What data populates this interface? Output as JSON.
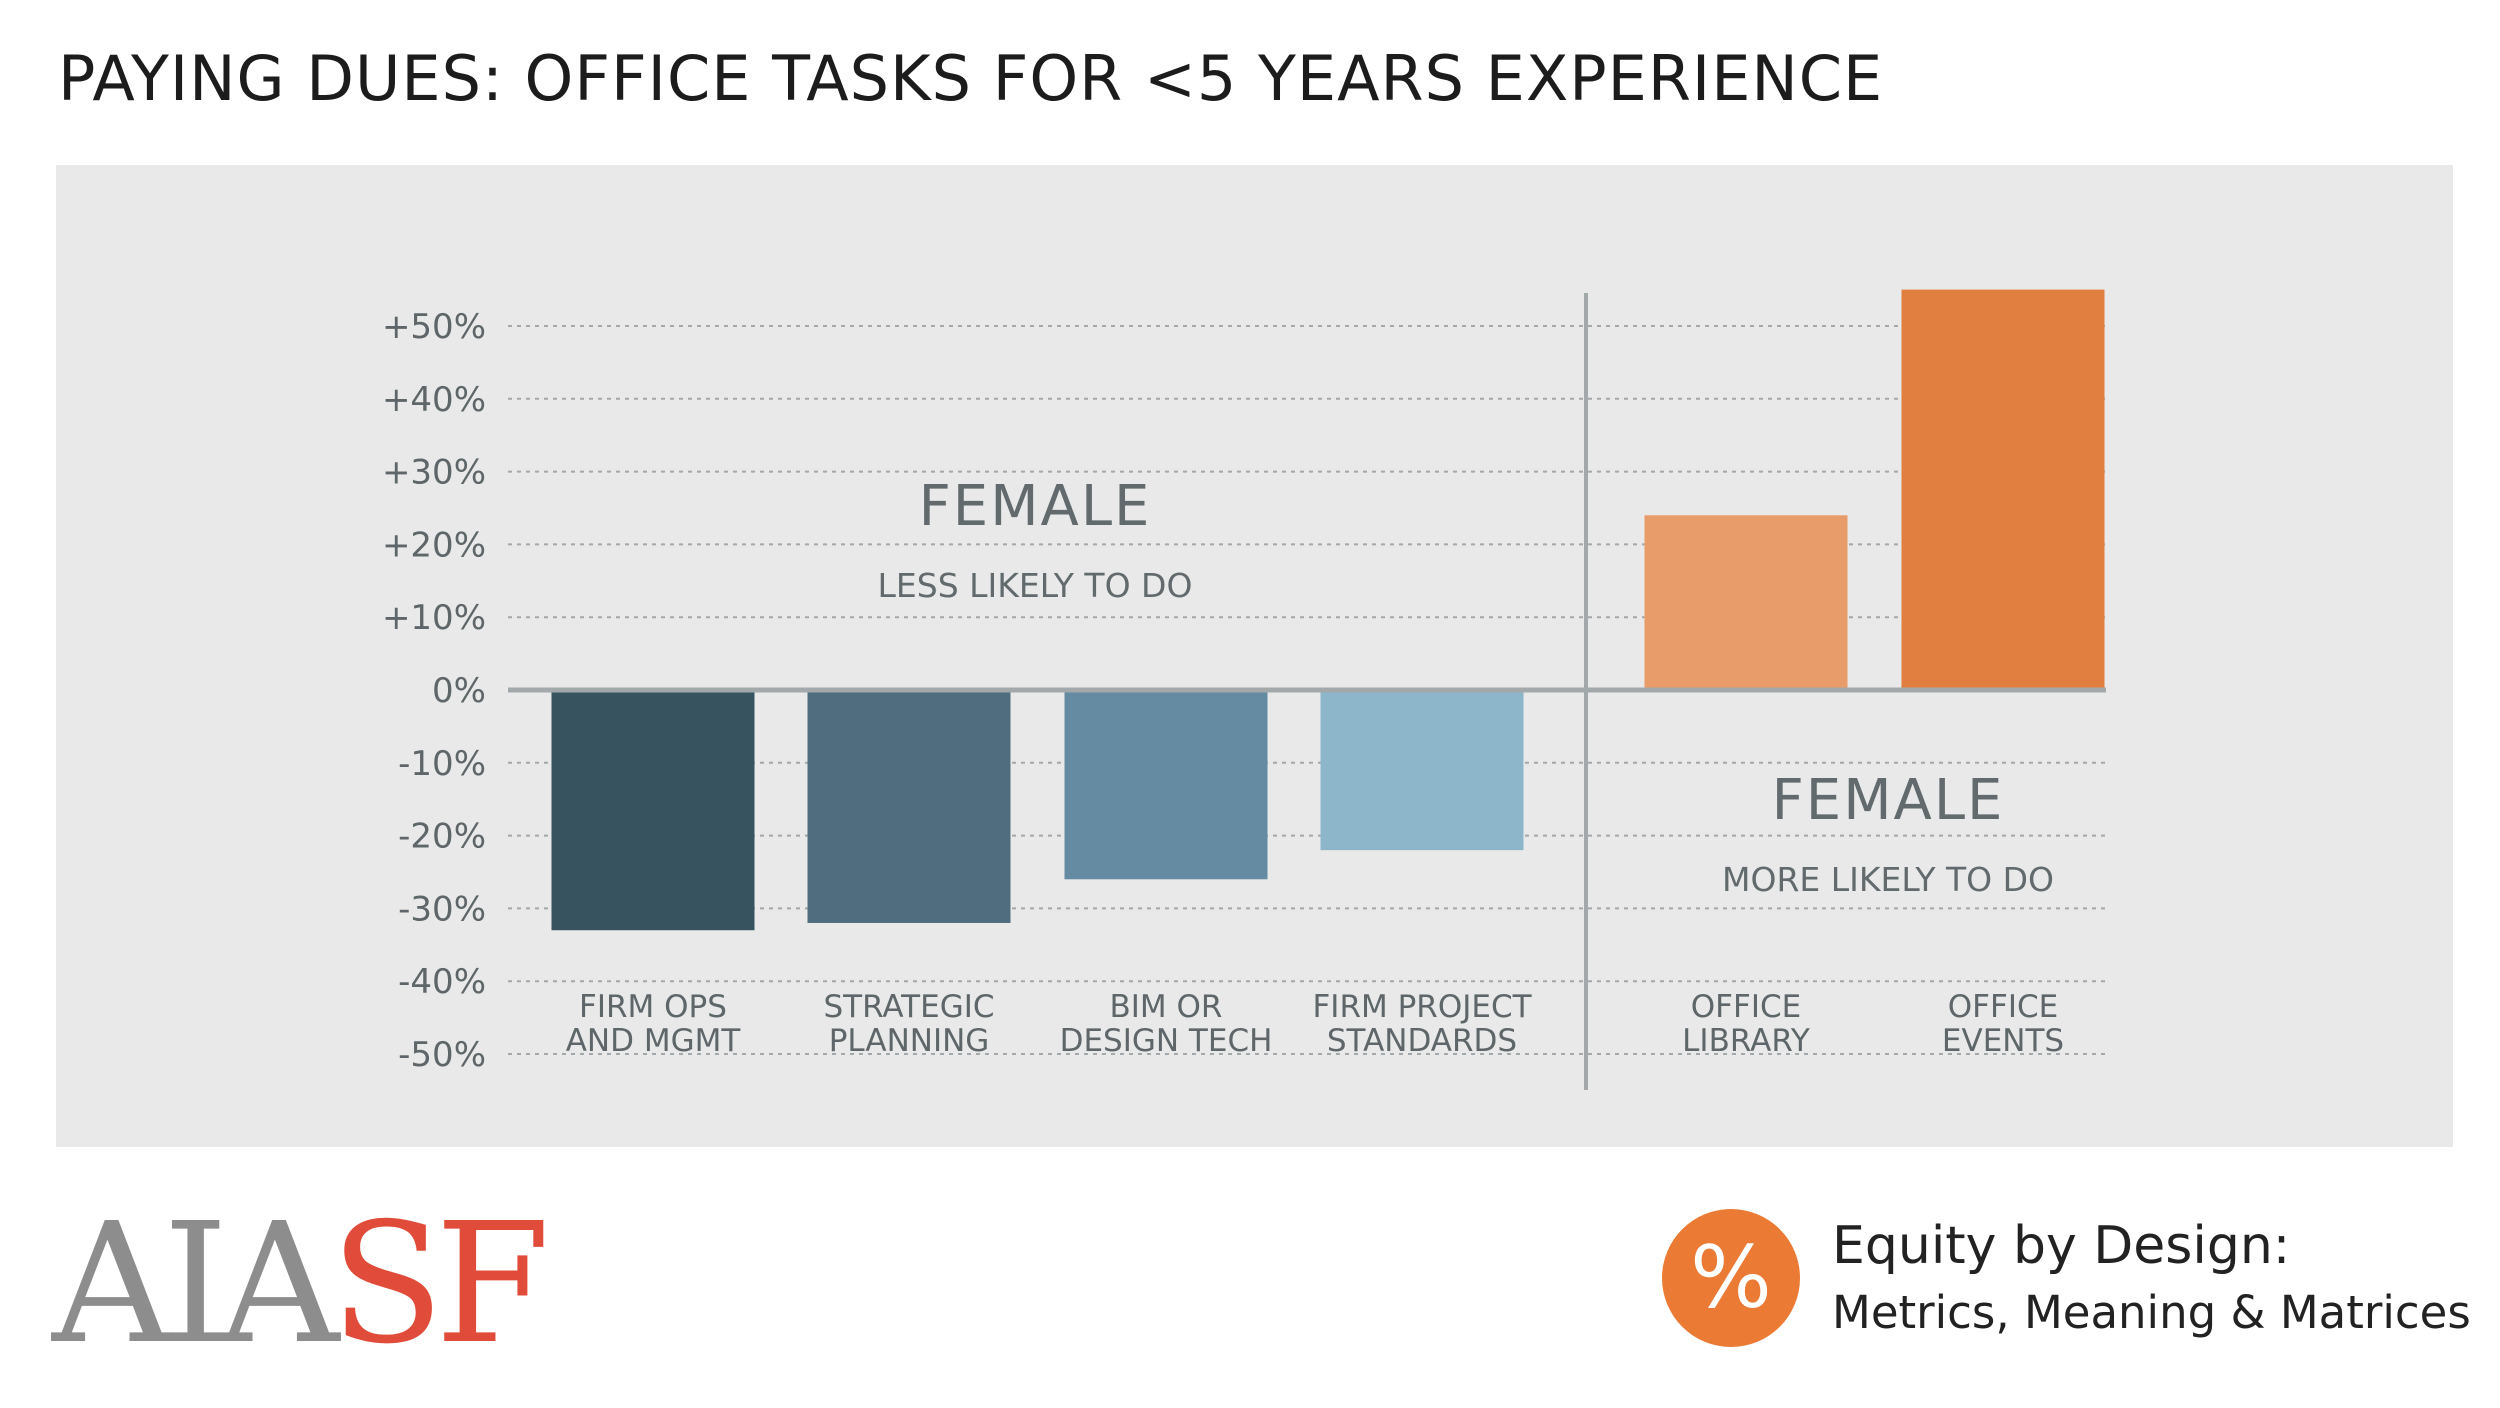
{
  "page": {
    "title": "PAYING DUES: OFFICE TASKS FOR <5 YEARS EXPERIENCE"
  },
  "colors": {
    "panel_background": "#e8e9e8",
    "grid": "#a3a8ab",
    "baseline": "#a3a8ab",
    "bars": [
      "#36535f",
      "#506d7f",
      "#658ba3",
      "#8db6cb",
      "#e89c69",
      "#e07f40"
    ],
    "annotation_text": "#626a6d",
    "axis_text": "#5f6669",
    "accent_orange": "#ea7a34",
    "logo_red": "#e14c3a",
    "logo_gray": "#8d8d8d"
  },
  "chart_data": {
    "type": "bar",
    "categories": [
      [
        "FIRM OPS",
        "AND MGMT"
      ],
      [
        "STRATEGIC",
        "PLANNING"
      ],
      [
        "BIM OR",
        "DESIGN TECH"
      ],
      [
        "FIRM PROJECT",
        "STANDARDS"
      ],
      [
        "OFFICE",
        "LIBRARY"
      ],
      [
        "OFFICE",
        "EVENTS"
      ]
    ],
    "values": [
      -33,
      -32,
      -26,
      -22,
      24,
      55
    ],
    "ylim": [
      -50,
      55
    ],
    "yticks": [
      50,
      40,
      30,
      20,
      10,
      0,
      -10,
      -20,
      -30,
      -40,
      -50
    ],
    "ytick_labels": [
      "+50%",
      "+40%",
      "+30%",
      "+20%",
      "+10%",
      "0%",
      "-10%",
      "-20%",
      "-30%",
      "-40%",
      "-50%"
    ],
    "grid": true,
    "divider_after_category_index": 3,
    "annotations": [
      {
        "title": "FEMALE",
        "subtitle": "LESS LIKELY TO DO",
        "group": "left"
      },
      {
        "title": "FEMALE",
        "subtitle": "MORE LIKELY TO DO",
        "group": "right"
      }
    ]
  },
  "footer": {
    "logo_part1": "AIA",
    "logo_part2": "SF",
    "badge_symbol": "%",
    "brand_line1": "Equity by Design:",
    "brand_line2": "Metrics, Meaning & Matrices"
  }
}
